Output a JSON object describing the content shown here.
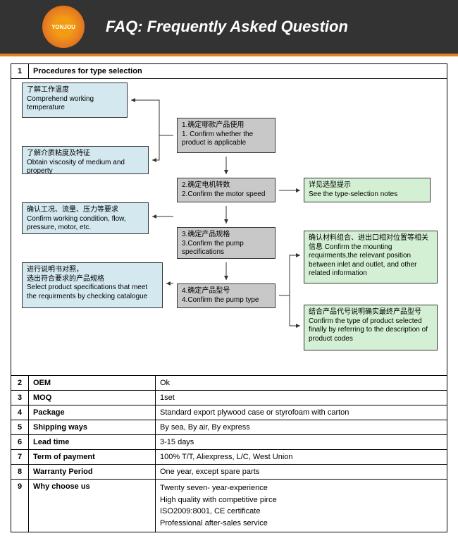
{
  "header": {
    "logo": "YONJOU",
    "title": "FAQ: Frequently Asked Question"
  },
  "row1": {
    "num": "1",
    "label": "Procedures for type selection"
  },
  "flow": {
    "b1": {
      "cn": "了解工作温度",
      "en": "Comprehend working temperature"
    },
    "b2": {
      "cn": "了解介质粘度及特征",
      "en": "Obtain viscosity of medium and property"
    },
    "b3": {
      "cn": "确认工况、流量、压力等要求",
      "en": "Confirm working condition, flow, pressure, motor, etc."
    },
    "b4": {
      "cn": "进行说明书对照，\n选出符合要求的产品规格",
      "en": "Select product specifications that meet the requirments by checking catalogue"
    },
    "g1": {
      "cn": "1.确定哪款产品使用",
      "en": "1. Confirm whether the product is  applicable"
    },
    "g2": {
      "cn": "2.确定电机转数",
      "en": "2.Confirm the motor speed"
    },
    "g3": {
      "cn": "3.确定产品规格",
      "en": "3.Confirm the pump specifications"
    },
    "g4": {
      "cn": "4.确定产品型号",
      "en": "4.Confirm the pump type"
    },
    "n1": {
      "cn": "详见选型提示",
      "en": "See the type-selection notes"
    },
    "n2": {
      "cn": "确认材料组合、进出口相对位置等相关信息",
      "en": "Confirm the mounting requirments,the relevant position between inlet and outlet, and other related information"
    },
    "n3": {
      "cn": "结合产品代号说明确实最终产品型号",
      "en": "Confirm the type of product selected finally by referring to the description of product codes"
    }
  },
  "rows": [
    {
      "num": "2",
      "label": "OEM",
      "val": "Ok"
    },
    {
      "num": "3",
      "label": "MOQ",
      "val": "1set"
    },
    {
      "num": "4",
      "label": "Package",
      "val": "Standard export plywood case or styrofoam with carton"
    },
    {
      "num": "5",
      "label": "Shipping ways",
      "val": "By sea, By air, By express"
    },
    {
      "num": "6",
      "label": "Lead time",
      "val": "3-15 days"
    },
    {
      "num": "7",
      "label": "Term of  payment",
      "val": "100% T/T, Aliexpress,  L/C, West Union"
    },
    {
      "num": "8",
      "label": "Warranty Period",
      "val": "One year, except spare parts"
    },
    {
      "num": "9",
      "label": "Why choose us",
      "val": "Twenty seven- year-experience\nHigh quality with competitive pirce\nISO2009:8001, CE certificate\nProfessional after-sales service"
    }
  ],
  "colors": {
    "blue": "#d4e8f0",
    "gray": "#c8c8c8",
    "green": "#d4f0d4",
    "border": "#333",
    "header": "#333",
    "accent": "#e67e22"
  }
}
